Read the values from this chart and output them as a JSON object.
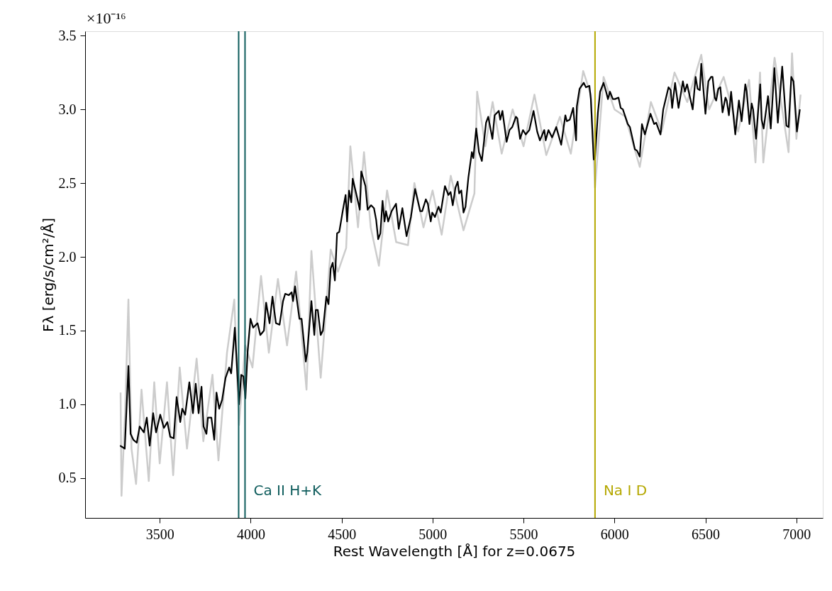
{
  "chart_data": {
    "type": "line",
    "xlabel": "Rest Wavelength [Å] for z=0.0675",
    "ylabel": "Fλ [erg/s/cm²/Å]",
    "annotations": [
      "×10⁻¹⁶"
    ],
    "xlim": [
      3090,
      7145
    ],
    "xticks": [
      3500,
      4000,
      4500,
      5000,
      5500,
      6000,
      6500,
      7000
    ],
    "ylim": [
      0.23,
      3.53
    ],
    "yticks": [
      0.5,
      {
        "value": 1,
        "label": "1.0"
      },
      1.5,
      {
        "value": 2,
        "label": "2.0"
      },
      2.5,
      {
        "value": 3,
        "label": "3.0"
      },
      3.5
    ],
    "grid": false,
    "marker": "none",
    "line_style": "solid",
    "series": [
      {
        "color": "#cccccc",
        "x": [
          3285,
          3290,
          3310,
          3328,
          3345,
          3370,
          3400,
          3440,
          3470,
          3500,
          3540,
          3574,
          3610,
          3650,
          3703,
          3740,
          3790,
          3823,
          3870,
          3910,
          3936,
          3970,
          4010,
          4057,
          4100,
          4150,
          4200,
          4250,
          4307,
          4334,
          4385,
          4440,
          4480,
          4525,
          4548,
          4590,
          4623,
          4660,
          4705,
          4750,
          4800,
          4865,
          4900,
          4950,
          5000,
          5050,
          5100,
          5170,
          5230,
          5245,
          5290,
          5330,
          5380,
          5440,
          5500,
          5560,
          5625,
          5700,
          5760,
          5828,
          5870,
          5893,
          5940,
          6000,
          6060,
          6139,
          6200,
          6260,
          6330,
          6400,
          6477,
          6520,
          6600,
          6680,
          6740,
          6775,
          6800,
          6818,
          6880,
          6957,
          6976,
          7000,
          7023
        ],
        "values": [
          1.08,
          0.38,
          0.95,
          1.71,
          0.7,
          0.46,
          1.1,
          0.48,
          1.15,
          0.6,
          1.15,
          0.52,
          1.25,
          0.7,
          1.31,
          0.75,
          1.2,
          0.62,
          1.35,
          1.71,
          0.86,
          1.4,
          1.25,
          1.87,
          1.35,
          1.85,
          1.4,
          1.9,
          1.1,
          2.04,
          1.18,
          2.05,
          1.9,
          2.06,
          2.75,
          2.2,
          2.71,
          2.2,
          1.94,
          2.45,
          2.1,
          2.08,
          2.5,
          2.2,
          2.45,
          2.15,
          2.55,
          2.18,
          2.43,
          3.12,
          2.75,
          3.05,
          2.7,
          3.0,
          2.75,
          3.1,
          2.69,
          2.95,
          2.7,
          3.26,
          3.1,
          2.47,
          3.22,
          3.0,
          2.95,
          2.61,
          3.05,
          2.85,
          3.25,
          3.05,
          3.37,
          3.0,
          3.22,
          2.85,
          3.2,
          2.64,
          3.25,
          2.64,
          3.35,
          2.71,
          3.38,
          2.8,
          3.1
        ]
      },
      {
        "color": "#000000",
        "x": [
          3282,
          3308,
          3328,
          3340,
          3355,
          3374,
          3390,
          3413,
          3429,
          3445,
          3464,
          3480,
          3503,
          3523,
          3542,
          3558,
          3577,
          3593,
          3613,
          3624,
          3640,
          3663,
          3683,
          3698,
          3714,
          3730,
          3741,
          3757,
          3765,
          3784,
          3800,
          3812,
          3827,
          3843,
          3862,
          3882,
          3893,
          3913,
          3936,
          3948,
          3960,
          3971,
          3983,
          3999,
          4014,
          4038,
          4053,
          4073,
          4085,
          4104,
          4120,
          4139,
          4159,
          4178,
          4190,
          4209,
          4225,
          4233,
          4244,
          4268,
          4280,
          4303,
          4311,
          4334,
          4350,
          4358,
          4369,
          4385,
          4397,
          4416,
          4428,
          4440,
          4451,
          4463,
          4475,
          4487,
          4498,
          4506,
          4522,
          4530,
          4541,
          4553,
          4561,
          4580,
          4600,
          4608,
          4631,
          4643,
          4662,
          4678,
          4690,
          4701,
          4713,
          4725,
          4736,
          4744,
          4756,
          4775,
          4799,
          4814,
          4834,
          4857,
          4881,
          4904,
          4932,
          4943,
          4963,
          4974,
          4990,
          4998,
          5013,
          5033,
          5045,
          5068,
          5087,
          5099,
          5111,
          5126,
          5138,
          5146,
          5158,
          5170,
          5181,
          5197,
          5216,
          5224,
          5240,
          5255,
          5271,
          5294,
          5306,
          5329,
          5341,
          5364,
          5372,
          5384,
          5407,
          5423,
          5438,
          5458,
          5466,
          5481,
          5497,
          5512,
          5532,
          5555,
          5575,
          5590,
          5614,
          5622,
          5637,
          5657,
          5680,
          5707,
          5730,
          5738,
          5754,
          5773,
          5789,
          5793,
          5808,
          5831,
          5843,
          5862,
          5870,
          5886,
          5893,
          5909,
          5921,
          5940,
          5956,
          5964,
          5975,
          5991,
          6003,
          6022,
          6034,
          6046,
          6073,
          6085,
          6112,
          6124,
          6139,
          6151,
          6167,
          6198,
          6218,
          6229,
          6253,
          6268,
          6297,
          6309,
          6317,
          6333,
          6352,
          6376,
          6387,
          6399,
          6430,
          6446,
          6457,
          6469,
          6477,
          6500,
          6516,
          6531,
          6539,
          6551,
          6559,
          6571,
          6582,
          6594,
          6610,
          6617,
          6629,
          6641,
          6664,
          6684,
          6699,
          6719,
          6727,
          6742,
          6754,
          6762,
          6778,
          6801,
          6809,
          6820,
          6844,
          6859,
          6879,
          6898,
          6922,
          6945,
          6957,
          6972,
          6984,
          7003,
          7019
        ],
        "values": [
          0.72,
          0.7,
          1.26,
          0.8,
          0.76,
          0.74,
          0.85,
          0.81,
          0.91,
          0.72,
          0.94,
          0.81,
          0.93,
          0.84,
          0.88,
          0.78,
          0.77,
          1.05,
          0.88,
          0.97,
          0.93,
          1.15,
          0.94,
          1.14,
          0.94,
          1.12,
          0.85,
          0.8,
          0.91,
          0.91,
          0.76,
          1.08,
          0.97,
          1.03,
          1.18,
          1.25,
          1.21,
          1.52,
          1.0,
          1.2,
          1.19,
          1.04,
          1.35,
          1.58,
          1.52,
          1.55,
          1.47,
          1.5,
          1.69,
          1.55,
          1.73,
          1.55,
          1.54,
          1.7,
          1.75,
          1.74,
          1.76,
          1.7,
          1.8,
          1.58,
          1.58,
          1.29,
          1.35,
          1.7,
          1.47,
          1.64,
          1.64,
          1.47,
          1.5,
          1.73,
          1.68,
          1.92,
          1.96,
          1.84,
          2.16,
          2.17,
          2.25,
          2.31,
          2.42,
          2.24,
          2.45,
          2.37,
          2.53,
          2.43,
          2.32,
          2.58,
          2.48,
          2.32,
          2.35,
          2.33,
          2.25,
          2.12,
          2.16,
          2.38,
          2.24,
          2.31,
          2.24,
          2.31,
          2.36,
          2.19,
          2.33,
          2.14,
          2.27,
          2.46,
          2.31,
          2.31,
          2.39,
          2.36,
          2.24,
          2.3,
          2.27,
          2.34,
          2.3,
          2.48,
          2.42,
          2.44,
          2.35,
          2.47,
          2.51,
          2.43,
          2.45,
          2.3,
          2.34,
          2.54,
          2.71,
          2.67,
          2.87,
          2.71,
          2.65,
          2.91,
          2.95,
          2.8,
          2.96,
          2.99,
          2.93,
          2.99,
          2.78,
          2.86,
          2.88,
          2.95,
          2.94,
          2.8,
          2.86,
          2.83,
          2.86,
          2.99,
          2.85,
          2.79,
          2.86,
          2.79,
          2.86,
          2.81,
          2.88,
          2.76,
          2.96,
          2.92,
          2.93,
          3.01,
          2.79,
          3.02,
          3.14,
          3.18,
          3.15,
          3.16,
          3.07,
          2.66,
          2.67,
          2.98,
          3.12,
          3.18,
          3.11,
          3.07,
          3.12,
          3.07,
          3.07,
          3.08,
          3.01,
          3.0,
          2.9,
          2.88,
          2.73,
          2.72,
          2.68,
          2.9,
          2.83,
          2.97,
          2.9,
          2.91,
          2.83,
          3.0,
          3.15,
          3.13,
          3.01,
          3.18,
          3.01,
          3.19,
          3.12,
          3.17,
          3.0,
          3.22,
          3.14,
          3.13,
          3.31,
          2.97,
          3.19,
          3.22,
          3.22,
          3.08,
          3.06,
          3.14,
          3.15,
          2.98,
          3.08,
          3.06,
          2.96,
          3.12,
          2.83,
          3.06,
          2.92,
          3.17,
          3.12,
          2.9,
          3.04,
          3.0,
          2.8,
          3.17,
          2.93,
          2.87,
          3.09,
          2.87,
          3.28,
          2.91,
          3.29,
          2.89,
          2.88,
          3.22,
          3.19,
          2.85,
          3.0
        ]
      }
    ],
    "ref_lines": [
      {
        "axis": "x",
        "value": 3934,
        "label": null,
        "color": "#0e5c5c"
      },
      {
        "axis": "x",
        "value": 3969,
        "label": "Ca II H+K",
        "color": "#0e5c5c"
      },
      {
        "axis": "x",
        "value": 5893,
        "label": "Na I D",
        "color": "#b5a800"
      }
    ]
  }
}
